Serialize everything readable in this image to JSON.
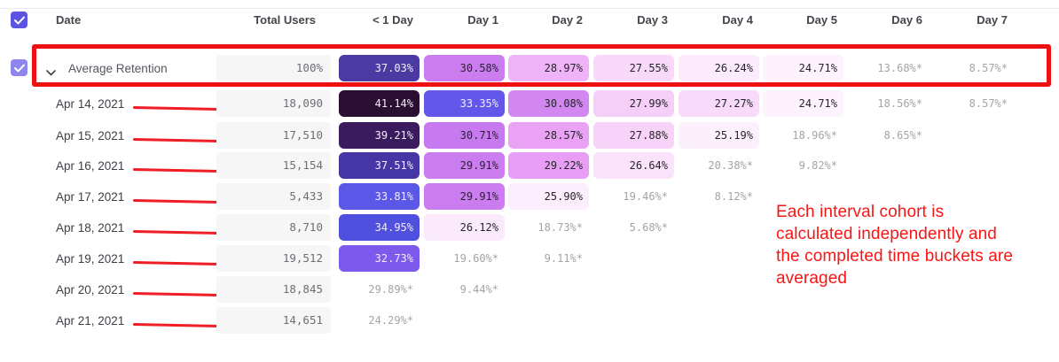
{
  "header": {
    "select_all_checked": true,
    "columns": [
      {
        "label": "Date"
      },
      {
        "label": "Total Users"
      },
      {
        "label": "< 1 Day"
      },
      {
        "label": "Day 1"
      },
      {
        "label": "Day 2"
      },
      {
        "label": "Day 3"
      },
      {
        "label": "Day 4"
      },
      {
        "label": "Day 5"
      },
      {
        "label": "Day 6"
      },
      {
        "label": "Day 7"
      }
    ]
  },
  "table": {
    "rows": [
      {
        "label": "Average Retention",
        "type": "average",
        "checked": true,
        "total": "100%",
        "cells": [
          {
            "value": "37.03%",
            "bg": "#4b3aa2",
            "text": "light"
          },
          {
            "value": "30.58%",
            "bg": "#cb7df0",
            "text": "dark"
          },
          {
            "value": "28.97%",
            "bg": "#efb3f7",
            "text": "dark"
          },
          {
            "value": "27.55%",
            "bg": "#f8d9fa",
            "text": "dark"
          },
          {
            "value": "26.24%",
            "bg": "#fcebfc",
            "text": "dark"
          },
          {
            "value": "24.71%",
            "bg": "#fdf2fd",
            "text": "dark"
          },
          {
            "value": "13.68%*",
            "bg": null,
            "text": "muted"
          },
          {
            "value": "8.57%*",
            "bg": null,
            "text": "muted"
          }
        ]
      },
      {
        "label": "Apr 14, 2021",
        "type": "date",
        "total": "18,090",
        "cells": [
          {
            "value": "41.14%",
            "bg": "#2b0f33",
            "text": "light"
          },
          {
            "value": "33.35%",
            "bg": "#6257e9",
            "text": "light"
          },
          {
            "value": "30.08%",
            "bg": "#d287f1",
            "text": "dark"
          },
          {
            "value": "27.99%",
            "bg": "#f6cff9",
            "text": "dark"
          },
          {
            "value": "27.27%",
            "bg": "#f8dafa",
            "text": "dark"
          },
          {
            "value": "24.71%",
            "bg": "#fdf2fd",
            "text": "dark"
          },
          {
            "value": "18.56%*",
            "bg": null,
            "text": "muted"
          },
          {
            "value": "8.57%*",
            "bg": null,
            "text": "muted"
          }
        ]
      },
      {
        "label": "Apr 15, 2021",
        "type": "date",
        "total": "17,510",
        "cells": [
          {
            "value": "39.21%",
            "bg": "#3a1c5e",
            "text": "light"
          },
          {
            "value": "30.71%",
            "bg": "#c77af0",
            "text": "dark"
          },
          {
            "value": "28.57%",
            "bg": "#e9a2f4",
            "text": "dark"
          },
          {
            "value": "27.88%",
            "bg": "#f7d3f9",
            "text": "dark"
          },
          {
            "value": "25.19%",
            "bg": "#fdf0fd",
            "text": "dark"
          },
          {
            "value": "18.96%*",
            "bg": null,
            "text": "muted"
          },
          {
            "value": "8.65%*",
            "bg": null,
            "text": "muted"
          }
        ]
      },
      {
        "label": "Apr 16, 2021",
        "type": "date",
        "total": "15,154",
        "cells": [
          {
            "value": "37.51%",
            "bg": "#4636a5",
            "text": "light"
          },
          {
            "value": "29.91%",
            "bg": "#cb7df0",
            "text": "dark"
          },
          {
            "value": "29.22%",
            "bg": "#e79ef4",
            "text": "dark"
          },
          {
            "value": "26.64%",
            "bg": "#fbe4fb",
            "text": "dark"
          },
          {
            "value": "20.38%*",
            "bg": null,
            "text": "muted"
          },
          {
            "value": "9.82%*",
            "bg": null,
            "text": "muted"
          }
        ]
      },
      {
        "label": "Apr 17, 2021",
        "type": "date",
        "total": "5,433",
        "cells": [
          {
            "value": "33.81%",
            "bg": "#5b57e7",
            "text": "light"
          },
          {
            "value": "29.91%",
            "bg": "#cb7df0",
            "text": "dark"
          },
          {
            "value": "25.90%",
            "bg": "#fdeefd",
            "text": "dark"
          },
          {
            "value": "19.46%*",
            "bg": null,
            "text": "muted"
          },
          {
            "value": "8.12%*",
            "bg": null,
            "text": "muted"
          }
        ]
      },
      {
        "label": "Apr 18, 2021",
        "type": "date",
        "total": "8,710",
        "cells": [
          {
            "value": "34.95%",
            "bg": "#4f50dd",
            "text": "light"
          },
          {
            "value": "26.12%",
            "bg": "#fbe9fc",
            "text": "dark"
          },
          {
            "value": "18.73%*",
            "bg": null,
            "text": "muted"
          },
          {
            "value": "5.68%*",
            "bg": null,
            "text": "muted"
          }
        ]
      },
      {
        "label": "Apr 19, 2021",
        "type": "date",
        "total": "19,512",
        "cells": [
          {
            "value": "32.73%",
            "bg": "#7d5aec",
            "text": "light"
          },
          {
            "value": "19.60%*",
            "bg": null,
            "text": "muted"
          },
          {
            "value": "9.11%*",
            "bg": null,
            "text": "muted"
          }
        ]
      },
      {
        "label": "Apr 20, 2021",
        "type": "date",
        "total": "18,845",
        "cells": [
          {
            "value": "29.89%*",
            "bg": null,
            "text": "muted"
          },
          {
            "value": "9.44%*",
            "bg": null,
            "text": "muted"
          }
        ]
      },
      {
        "label": "Apr 21, 2021",
        "type": "date",
        "total": "14,651",
        "cells": [
          {
            "value": "24.29%*",
            "bg": null,
            "text": "muted"
          }
        ]
      }
    ]
  },
  "annotation": {
    "lines": [
      "Each interval cohort is",
      "calculated independently and",
      "the completed time buckets are",
      "averaged"
    ],
    "color": "#fa1414"
  },
  "colors": {
    "checkbox": "#5b54e0",
    "checkbox_row": "#8e85ee",
    "highlight_red": "#ee1111",
    "arrow_red": "#ef1d25",
    "cell_text_light": "#f2ecf7",
    "cell_text_dark": "#26242b",
    "muted_text": "#a4a4a9"
  }
}
